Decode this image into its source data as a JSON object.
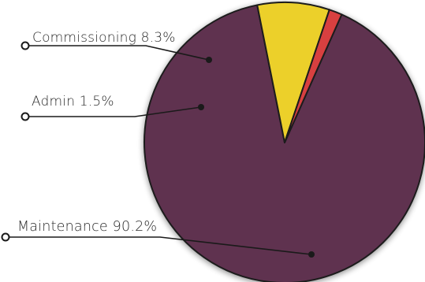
{
  "chart_data": {
    "type": "pie",
    "slices": [
      {
        "label": "Maintenance",
        "value": 90.2,
        "display": "Maintenance 90.2%",
        "color": "#5f3350"
      },
      {
        "label": "Commissioning",
        "value": 8.3,
        "display": "Commissioning 8.3%",
        "color": "#ecd02c"
      },
      {
        "label": "Admin",
        "value": 1.5,
        "display": "Admin 1.5%",
        "color": "#d84040"
      }
    ],
    "legend": "callout labels"
  }
}
